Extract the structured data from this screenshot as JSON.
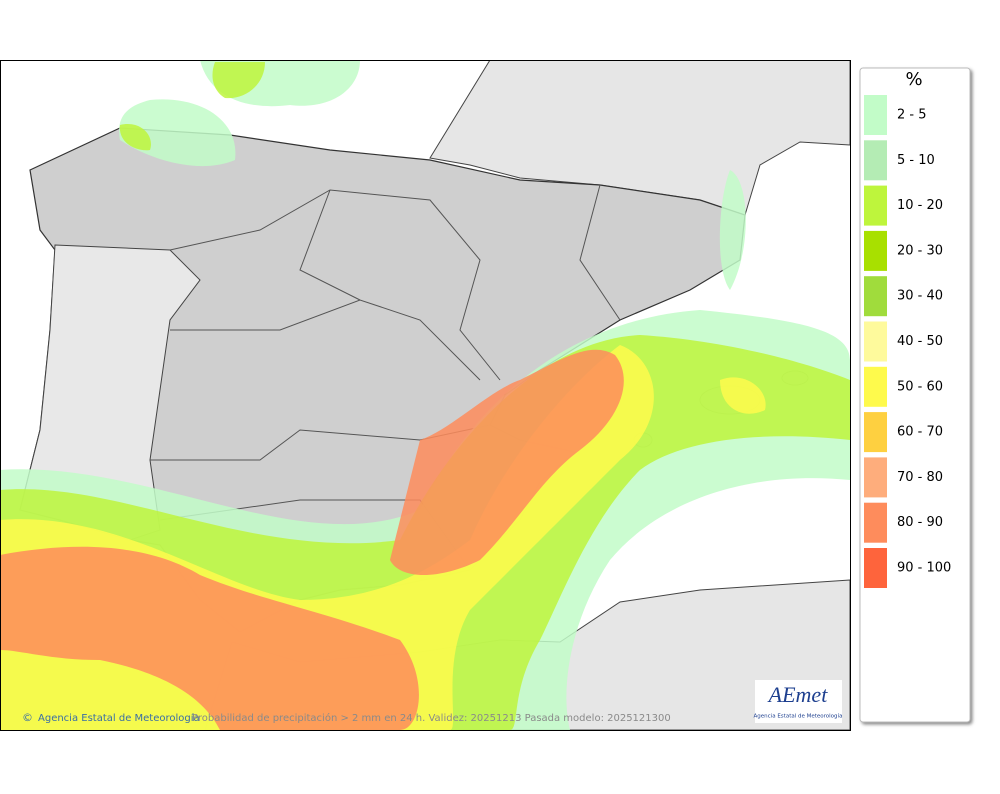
{
  "legend": {
    "title": "%",
    "items": [
      {
        "label": "2 - 5",
        "color": "#c2fcc8"
      },
      {
        "label": "5 - 10",
        "color": "#b4ecb4"
      },
      {
        "label": "10 - 20",
        "color": "#bef53c"
      },
      {
        "label": "20 - 30",
        "color": "#a8e000"
      },
      {
        "label": "30 - 40",
        "color": "#a0dc3c"
      },
      {
        "label": "40 - 50",
        "color": "#fefa9c"
      },
      {
        "label": "50 - 60",
        "color": "#fefa4c"
      },
      {
        "label": "60 - 70",
        "color": "#fed040"
      },
      {
        "label": "70 - 80",
        "color": "#fead7c"
      },
      {
        "label": "80 - 90",
        "color": "#fe8c5c"
      },
      {
        "label": "90 - 100",
        "color": "#fe643c"
      }
    ]
  },
  "footer": {
    "symbol": "©",
    "credit": "Agencia Estatal de Meteorología",
    "caption": "Probabilidad de precipitación > 2 mm en 24 h. Validez: 20251213 Pasada modelo: 2025121300"
  },
  "logo": {
    "name": "AEmet",
    "subtitle": "Agencia Estatal de Meteorología"
  }
}
